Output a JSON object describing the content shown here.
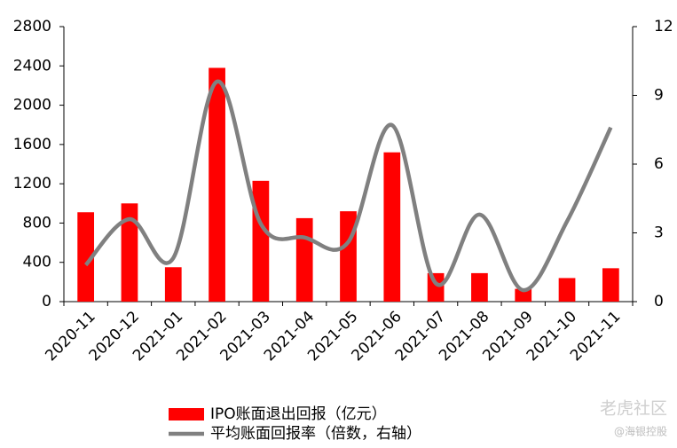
{
  "chart_data": {
    "type": "bar",
    "categories": [
      "2020-11",
      "2020-12",
      "2021-01",
      "2021-02",
      "2021-03",
      "2021-04",
      "2021-05",
      "2021-06",
      "2021-07",
      "2021-08",
      "2021-09",
      "2021-10",
      "2021-11"
    ],
    "series": [
      {
        "name": "IPO账面退出回报（亿元）",
        "type": "bar",
        "color": "#ff0000",
        "values": [
          910,
          1000,
          350,
          2380,
          1230,
          850,
          920,
          1520,
          290,
          290,
          130,
          240,
          340
        ]
      },
      {
        "name": "平均账面回报率（倍数，右轴）",
        "type": "line",
        "axis": "y2",
        "color": "#808080",
        "values": [
          1.6,
          3.6,
          1.9,
          9.6,
          3.4,
          2.8,
          2.6,
          7.7,
          0.8,
          3.8,
          0.5,
          3.5,
          7.6
        ]
      }
    ],
    "ylim": [
      0,
      2800
    ],
    "yticks": [
      0,
      400,
      800,
      1200,
      1600,
      2000,
      2400,
      2800
    ],
    "y2lim": [
      0,
      12
    ],
    "y2ticks": [
      0,
      3,
      6,
      9,
      12
    ],
    "legend": "bottom",
    "watermark": {
      "brand": "老虎社区",
      "handle": "@海银控股"
    }
  }
}
